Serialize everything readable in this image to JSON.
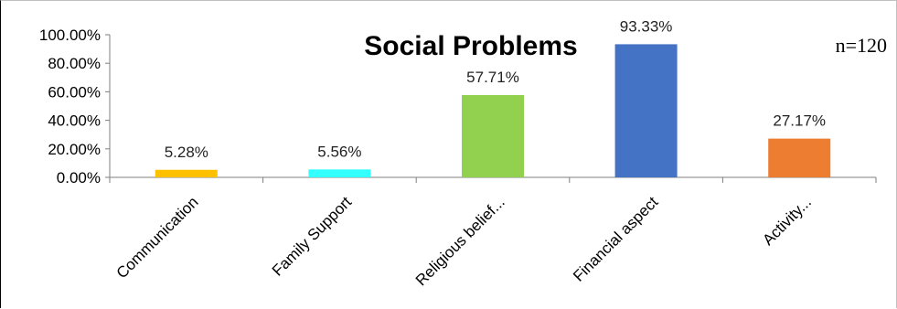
{
  "chart_data": {
    "type": "bar",
    "title": "Social Problems",
    "annotation": "n=120",
    "categories": [
      "Communication",
      "Family Support",
      "Religious belief...",
      "Financial aspect",
      "Activity..."
    ],
    "values": [
      5.28,
      5.56,
      57.71,
      93.33,
      27.17
    ],
    "data_labels": [
      "5.28%",
      "5.56%",
      "57.71%",
      "93.33%",
      "27.17%"
    ],
    "colors": [
      "#FFC000",
      "#33FFFF",
      "#92D050",
      "#4472C4",
      "#ED7D31"
    ],
    "yticks": [
      0,
      20,
      40,
      60,
      80,
      100
    ],
    "ytick_labels": [
      "0.00%",
      "20.00%",
      "40.00%",
      "60.00%",
      "80.00%",
      "100.00%"
    ],
    "ylim": [
      0,
      100
    ],
    "xlabel": "",
    "ylabel": "",
    "grid": false,
    "legend": "none"
  }
}
